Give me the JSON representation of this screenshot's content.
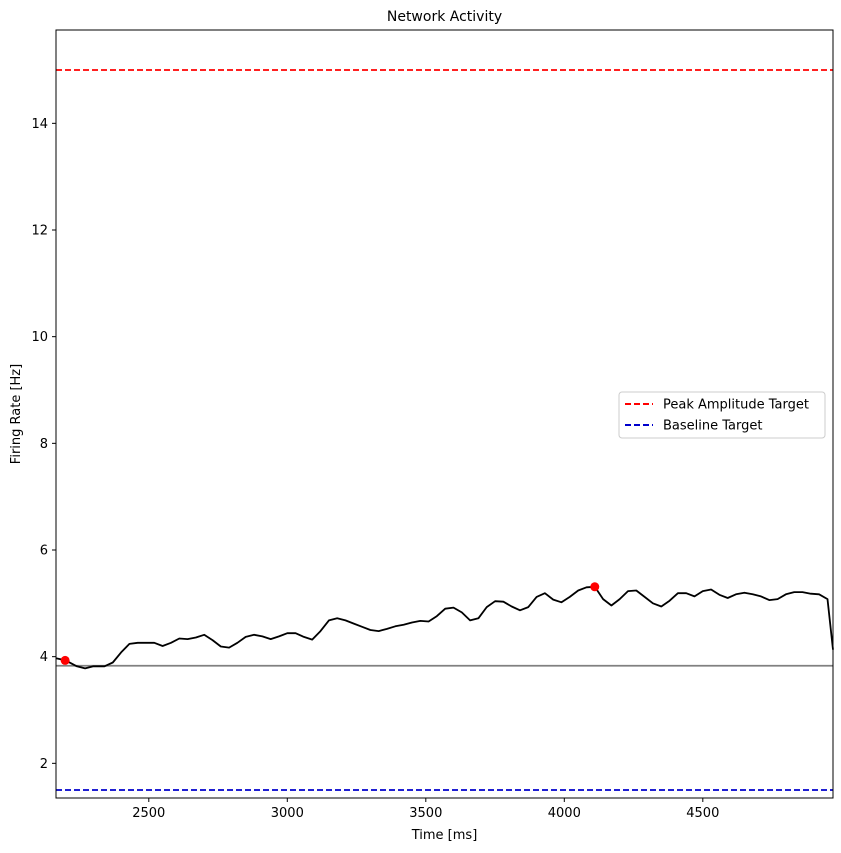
{
  "chart_data": {
    "type": "line",
    "title": "Network Activity",
    "xlabel": "Time [ms]",
    "ylabel": "Firing Rate [Hz]",
    "xlim": [
      2165,
      4970
    ],
    "ylim": [
      1.35,
      15.75
    ],
    "grid": false,
    "legend_position": "center-right",
    "x_ticks": [
      2500,
      3000,
      3500,
      4000,
      4500
    ],
    "y_ticks": [
      2,
      4,
      6,
      8,
      10,
      12,
      14
    ],
    "x_tick_labels": [
      "2500",
      "3000",
      "3500",
      "4000",
      "4500"
    ],
    "y_tick_labels": [
      "2",
      "4",
      "6",
      "8",
      "10",
      "12",
      "14"
    ],
    "reference_lines": [
      {
        "name": "Peak Amplitude Target",
        "y": 15.0,
        "color": "#ff0000",
        "style": "dashed",
        "in_legend": true
      },
      {
        "name": "Baseline Target",
        "y": 1.5,
        "color": "#0000cc",
        "style": "dashed",
        "in_legend": true
      },
      {
        "name": "",
        "y": 3.83,
        "color": "#808080",
        "style": "solid",
        "in_legend": false
      }
    ],
    "legend": [
      "Peak Amplitude Target",
      "Baseline Target"
    ],
    "series": [
      {
        "color": "#000000",
        "x": [
          2165,
          2200,
          2240,
          2270,
          2300,
          2340,
          2370,
          2400,
          2430,
          2460,
          2490,
          2520,
          2550,
          2580,
          2610,
          2640,
          2670,
          2700,
          2730,
          2760,
          2790,
          2820,
          2850,
          2880,
          2910,
          2940,
          2970,
          3000,
          3030,
          3060,
          3090,
          3120,
          3150,
          3180,
          3210,
          3240,
          3270,
          3300,
          3330,
          3360,
          3390,
          3420,
          3450,
          3480,
          3510,
          3540,
          3570,
          3600,
          3630,
          3660,
          3690,
          3720,
          3750,
          3780,
          3810,
          3840,
          3870,
          3900,
          3930,
          3960,
          3990,
          4020,
          4050,
          4080,
          4110,
          4140,
          4170,
          4200,
          4230,
          4260,
          4290,
          4320,
          4350,
          4380,
          4410,
          4440,
          4470,
          4500,
          4530,
          4560,
          4590,
          4620,
          4650,
          4680,
          4710,
          4740,
          4770,
          4800,
          4830,
          4860,
          4890,
          4920,
          4950,
          4970
        ],
        "y": [
          3.97,
          3.93,
          3.82,
          3.78,
          3.82,
          3.82,
          3.89,
          4.08,
          4.24,
          4.26,
          4.26,
          4.26,
          4.2,
          4.26,
          4.34,
          4.33,
          4.36,
          4.41,
          4.31,
          4.19,
          4.17,
          4.26,
          4.37,
          4.41,
          4.38,
          4.33,
          4.38,
          4.44,
          4.44,
          4.37,
          4.32,
          4.48,
          4.68,
          4.72,
          4.68,
          4.62,
          4.56,
          4.5,
          4.48,
          4.52,
          4.57,
          4.6,
          4.64,
          4.67,
          4.66,
          4.76,
          4.9,
          4.92,
          4.83,
          4.68,
          4.72,
          4.93,
          5.04,
          5.03,
          4.94,
          4.87,
          4.93,
          5.12,
          5.19,
          5.07,
          5.02,
          5.12,
          5.24,
          5.3,
          5.31,
          5.08,
          4.96,
          5.08,
          5.23,
          5.24,
          5.12,
          5.0,
          4.94,
          5.05,
          5.19,
          5.19,
          5.13,
          5.23,
          5.26,
          5.16,
          5.1,
          5.17,
          5.2,
          5.17,
          5.13,
          5.06,
          5.08,
          5.17,
          5.21,
          5.21,
          5.18,
          5.17,
          5.08,
          4.13
        ]
      }
    ],
    "highlight_points": [
      {
        "x": 2198,
        "y": 3.93,
        "color": "#ff0000"
      },
      {
        "x": 4110,
        "y": 5.31,
        "color": "#ff0000"
      }
    ]
  }
}
